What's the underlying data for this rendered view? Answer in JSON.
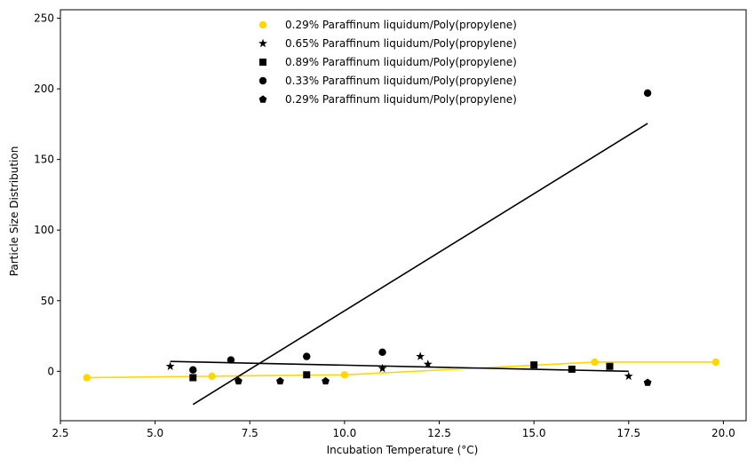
{
  "chart_data": {
    "type": "scatter",
    "title": "",
    "xlabel": "Incubation Temperature (°C)",
    "ylabel": "Particle Size Distribution",
    "xlim": [
      2.5,
      20.6
    ],
    "ylim": [
      -35,
      256
    ],
    "xticks": [
      2.5,
      5.0,
      7.5,
      10.0,
      12.5,
      15.0,
      17.5,
      20.0
    ],
    "yticks": [
      0,
      50,
      100,
      150,
      200,
      250
    ],
    "grid": false,
    "legend_position": "top-center",
    "series": [
      {
        "name": "0.29% Paraffinum liquidum/Poly(propylene)",
        "marker": "circle",
        "color": "#FFD700",
        "points": [
          [
            3.2,
            -4.5
          ],
          [
            6.5,
            -3.5
          ],
          [
            10.0,
            -2.5
          ],
          [
            16.6,
            6.5
          ],
          [
            19.8,
            6.5
          ]
        ],
        "line": {
          "type": "connect",
          "color": "#FFD700"
        }
      },
      {
        "name": "0.65% Paraffinum liquidum/Poly(propylene)",
        "marker": "star",
        "color": "#000000",
        "points": [
          [
            5.4,
            3.5
          ],
          [
            11.0,
            2.0
          ],
          [
            12.0,
            10.5
          ],
          [
            12.2,
            5.0
          ],
          [
            17.5,
            -3.5
          ]
        ],
        "line": {
          "type": "fit",
          "from": [
            5.4,
            7.0
          ],
          "to": [
            17.5,
            0.0
          ],
          "color": "#000000"
        }
      },
      {
        "name": "0.89% Paraffinum liquidum/Poly(propylene)",
        "marker": "square",
        "color": "#000000",
        "points": [
          [
            6.0,
            -4.5
          ],
          [
            9.0,
            -2.5
          ],
          [
            15.0,
            4.5
          ],
          [
            16.0,
            1.5
          ],
          [
            17.0,
            3.5
          ]
        ]
      },
      {
        "name": "0.33% Paraffinum liquidum/Poly(propylene)",
        "marker": "circle",
        "color": "#000000",
        "points": [
          [
            6.0,
            1.0
          ],
          [
            7.0,
            8.0
          ],
          [
            9.0,
            10.5
          ],
          [
            11.0,
            13.5
          ],
          [
            18.0,
            197.0
          ]
        ],
        "line": {
          "type": "fit",
          "from": [
            6.0,
            -23.5
          ],
          "to": [
            18.0,
            175.5
          ],
          "color": "#000000"
        }
      },
      {
        "name": "0.29% Paraffinum liquidum/Poly(propylene)",
        "marker": "pentagon",
        "color": "#000000",
        "points": [
          [
            7.2,
            -7.0
          ],
          [
            8.3,
            -7.0
          ],
          [
            9.5,
            -7.0
          ],
          [
            18.0,
            -8.0
          ]
        ]
      }
    ]
  }
}
